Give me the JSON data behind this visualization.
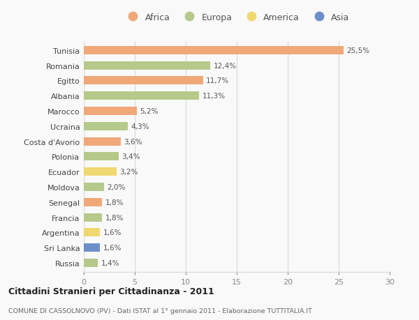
{
  "countries": [
    "Tunisia",
    "Romania",
    "Egitto",
    "Albania",
    "Marocco",
    "Ucraina",
    "Costa d'Avorio",
    "Polonia",
    "Ecuador",
    "Moldova",
    "Senegal",
    "Francia",
    "Argentina",
    "Sri Lanka",
    "Russia"
  ],
  "values": [
    25.5,
    12.4,
    11.7,
    11.3,
    5.2,
    4.3,
    3.6,
    3.4,
    3.2,
    2.0,
    1.8,
    1.8,
    1.6,
    1.6,
    1.4
  ],
  "labels": [
    "25,5%",
    "12,4%",
    "11,7%",
    "11,3%",
    "5,2%",
    "4,3%",
    "3,6%",
    "3,4%",
    "3,2%",
    "2,0%",
    "1,8%",
    "1,8%",
    "1,6%",
    "1,6%",
    "1,4%"
  ],
  "continents": [
    "Africa",
    "Europa",
    "Africa",
    "Europa",
    "Africa",
    "Europa",
    "Africa",
    "Europa",
    "America",
    "Europa",
    "Africa",
    "Europa",
    "America",
    "Asia",
    "Europa"
  ],
  "colors": {
    "Africa": "#F0A878",
    "Europa": "#B5C98A",
    "America": "#F0D870",
    "Asia": "#6B8FC8"
  },
  "title": "Cittadini Stranieri per Cittadinanza - 2011",
  "subtitle": "COMUNE DI CASSOLNOVO (PV) - Dati ISTAT al 1° gennaio 2011 - Elaborazione TUTTITALIA.IT",
  "xlim": [
    0,
    30
  ],
  "xticks": [
    0,
    5,
    10,
    15,
    20,
    25,
    30
  ],
  "background_color": "#f9f9f9",
  "grid_color": "#d8d8d8",
  "bar_height": 0.55
}
